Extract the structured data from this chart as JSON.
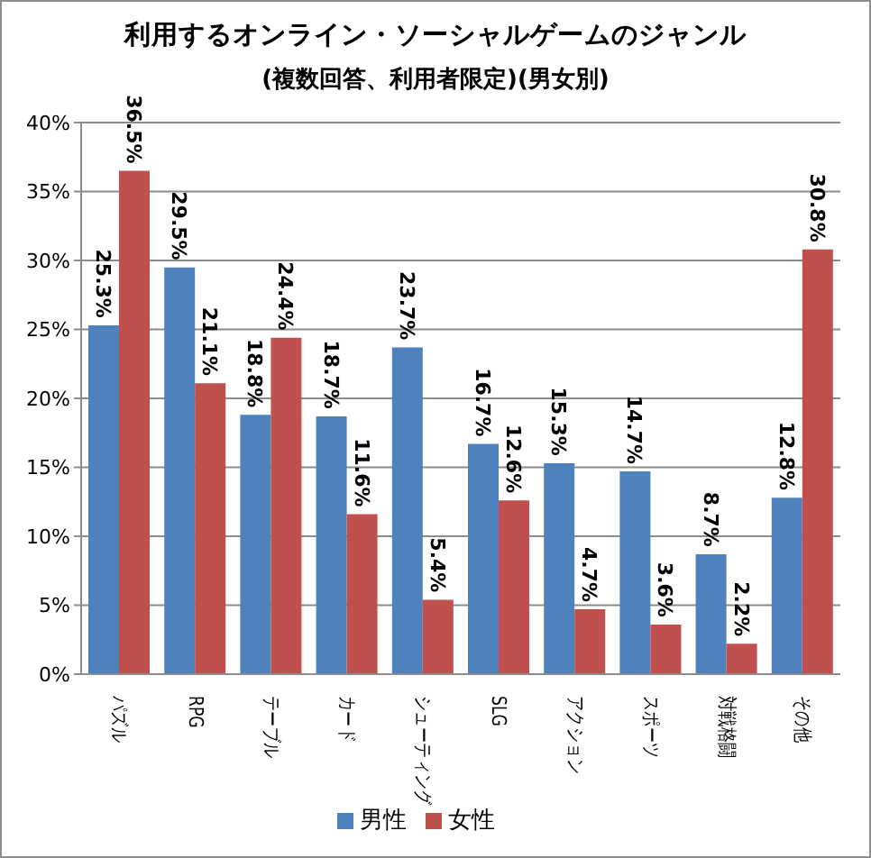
{
  "chart_data": {
    "type": "bar",
    "title": "利用するオンライン・ソーシャルゲームのジャンル",
    "subtitle": "(複数回答、利用者限定)(男女別)",
    "categories": [
      "パズル",
      "RPG",
      "テーブル",
      "カード",
      "シューティング",
      "SLG",
      "アクション",
      "スポーツ",
      "対戦格闘",
      "その他"
    ],
    "series": [
      {
        "name": "男性",
        "color": "#4f81bd",
        "values": [
          25.3,
          29.5,
          18.8,
          18.7,
          23.7,
          16.7,
          15.3,
          14.7,
          8.7,
          12.8
        ],
        "value_labels": [
          "25.3%",
          "29.5%",
          "18.8%",
          "18.7%",
          "23.7%",
          "16.7%",
          "15.3%",
          "14.7%",
          "8.7%",
          "12.8%"
        ]
      },
      {
        "name": "女性",
        "color": "#c0504d",
        "values": [
          36.5,
          21.1,
          24.4,
          11.6,
          5.4,
          12.6,
          4.7,
          3.6,
          2.2,
          30.8
        ],
        "value_labels": [
          "36.5%",
          "21.1%",
          "24.4%",
          "11.6%",
          "5.4%",
          "12.6%",
          "4.7%",
          "3.6%",
          "2.2%",
          "30.8%"
        ]
      }
    ],
    "ylim": [
      0,
      40
    ],
    "yticks": [
      {
        "value": 0,
        "label": "0%"
      },
      {
        "value": 5,
        "label": "5%"
      },
      {
        "value": 10,
        "label": "10%"
      },
      {
        "value": 15,
        "label": "15%"
      },
      {
        "value": 20,
        "label": "20%"
      },
      {
        "value": 25,
        "label": "25%"
      },
      {
        "value": 30,
        "label": "30%"
      },
      {
        "value": 35,
        "label": "35%"
      },
      {
        "value": 40,
        "label": "40%"
      }
    ],
    "grid": "y",
    "legend": "bottom"
  }
}
